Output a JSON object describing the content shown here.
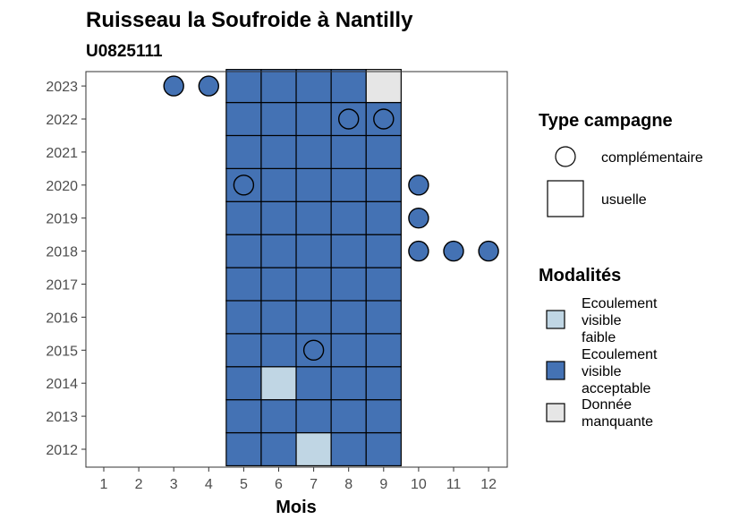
{
  "chart_data": {
    "type": "heatmap",
    "title": "Ruisseau la Soufroide à Nantilly",
    "subtitle": "U0825111",
    "xlabel": "Mois",
    "ylabel": "",
    "x_ticks": [
      "1",
      "2",
      "3",
      "4",
      "5",
      "6",
      "7",
      "8",
      "9",
      "10",
      "11",
      "12"
    ],
    "y_ticks": [
      "2012",
      "2013",
      "2014",
      "2015",
      "2016",
      "2017",
      "2018",
      "2019",
      "2020",
      "2021",
      "2022",
      "2023"
    ],
    "xlim": [
      1,
      12
    ],
    "ylim": [
      2012,
      2023
    ],
    "legend_shape": {
      "title": "Type campagne",
      "items": [
        {
          "key": "complementaire",
          "label": "complémentaire",
          "shape": "circle"
        },
        {
          "key": "usuelle",
          "label": "usuelle",
          "shape": "square"
        }
      ]
    },
    "legend_fill": {
      "title": "Modalités",
      "items": [
        {
          "key": "faible",
          "lines": [
            "Ecoulement",
            "visible",
            "faible"
          ],
          "color": "#c0d6e4"
        },
        {
          "key": "acceptable",
          "lines": [
            "Ecoulement",
            "visible",
            "acceptable"
          ],
          "color": "#4472b4"
        },
        {
          "key": "manquante",
          "lines": [
            "Donnée",
            "manquante"
          ],
          "color": "#e6e6e6"
        }
      ]
    },
    "points": [
      {
        "year": 2012,
        "month": 5,
        "type": "usuelle",
        "modalite": "acceptable"
      },
      {
        "year": 2012,
        "month": 6,
        "type": "usuelle",
        "modalite": "acceptable"
      },
      {
        "year": 2012,
        "month": 7,
        "type": "usuelle",
        "modalite": "faible"
      },
      {
        "year": 2012,
        "month": 8,
        "type": "usuelle",
        "modalite": "acceptable"
      },
      {
        "year": 2012,
        "month": 9,
        "type": "usuelle",
        "modalite": "acceptable"
      },
      {
        "year": 2013,
        "month": 5,
        "type": "usuelle",
        "modalite": "acceptable"
      },
      {
        "year": 2013,
        "month": 6,
        "type": "usuelle",
        "modalite": "acceptable"
      },
      {
        "year": 2013,
        "month": 7,
        "type": "usuelle",
        "modalite": "acceptable"
      },
      {
        "year": 2013,
        "month": 8,
        "type": "usuelle",
        "modalite": "acceptable"
      },
      {
        "year": 2013,
        "month": 9,
        "type": "usuelle",
        "modalite": "acceptable"
      },
      {
        "year": 2014,
        "month": 5,
        "type": "usuelle",
        "modalite": "acceptable"
      },
      {
        "year": 2014,
        "month": 6,
        "type": "usuelle",
        "modalite": "faible"
      },
      {
        "year": 2014,
        "month": 7,
        "type": "usuelle",
        "modalite": "acceptable"
      },
      {
        "year": 2014,
        "month": 8,
        "type": "usuelle",
        "modalite": "acceptable"
      },
      {
        "year": 2014,
        "month": 9,
        "type": "usuelle",
        "modalite": "acceptable"
      },
      {
        "year": 2015,
        "month": 5,
        "type": "usuelle",
        "modalite": "acceptable"
      },
      {
        "year": 2015,
        "month": 6,
        "type": "usuelle",
        "modalite": "acceptable"
      },
      {
        "year": 2015,
        "month": 7,
        "type": "usuelle",
        "modalite": "acceptable"
      },
      {
        "year": 2015,
        "month": 8,
        "type": "usuelle",
        "modalite": "acceptable"
      },
      {
        "year": 2015,
        "month": 9,
        "type": "usuelle",
        "modalite": "acceptable"
      },
      {
        "year": 2015,
        "month": 7,
        "type": "complementaire",
        "modalite": "acceptable"
      },
      {
        "year": 2016,
        "month": 5,
        "type": "usuelle",
        "modalite": "acceptable"
      },
      {
        "year": 2016,
        "month": 6,
        "type": "usuelle",
        "modalite": "acceptable"
      },
      {
        "year": 2016,
        "month": 7,
        "type": "usuelle",
        "modalite": "acceptable"
      },
      {
        "year": 2016,
        "month": 8,
        "type": "usuelle",
        "modalite": "acceptable"
      },
      {
        "year": 2016,
        "month": 9,
        "type": "usuelle",
        "modalite": "acceptable"
      },
      {
        "year": 2017,
        "month": 5,
        "type": "usuelle",
        "modalite": "acceptable"
      },
      {
        "year": 2017,
        "month": 6,
        "type": "usuelle",
        "modalite": "acceptable"
      },
      {
        "year": 2017,
        "month": 7,
        "type": "usuelle",
        "modalite": "acceptable"
      },
      {
        "year": 2017,
        "month": 8,
        "type": "usuelle",
        "modalite": "acceptable"
      },
      {
        "year": 2017,
        "month": 9,
        "type": "usuelle",
        "modalite": "acceptable"
      },
      {
        "year": 2018,
        "month": 5,
        "type": "usuelle",
        "modalite": "acceptable"
      },
      {
        "year": 2018,
        "month": 6,
        "type": "usuelle",
        "modalite": "acceptable"
      },
      {
        "year": 2018,
        "month": 7,
        "type": "usuelle",
        "modalite": "acceptable"
      },
      {
        "year": 2018,
        "month": 8,
        "type": "usuelle",
        "modalite": "acceptable"
      },
      {
        "year": 2018,
        "month": 9,
        "type": "usuelle",
        "modalite": "acceptable"
      },
      {
        "year": 2018,
        "month": 10,
        "type": "complementaire",
        "modalite": "acceptable"
      },
      {
        "year": 2018,
        "month": 11,
        "type": "complementaire",
        "modalite": "acceptable"
      },
      {
        "year": 2018,
        "month": 12,
        "type": "complementaire",
        "modalite": "acceptable"
      },
      {
        "year": 2019,
        "month": 5,
        "type": "usuelle",
        "modalite": "acceptable"
      },
      {
        "year": 2019,
        "month": 6,
        "type": "usuelle",
        "modalite": "acceptable"
      },
      {
        "year": 2019,
        "month": 7,
        "type": "usuelle",
        "modalite": "acceptable"
      },
      {
        "year": 2019,
        "month": 8,
        "type": "usuelle",
        "modalite": "acceptable"
      },
      {
        "year": 2019,
        "month": 9,
        "type": "usuelle",
        "modalite": "acceptable"
      },
      {
        "year": 2019,
        "month": 10,
        "type": "complementaire",
        "modalite": "acceptable"
      },
      {
        "year": 2020,
        "month": 5,
        "type": "usuelle",
        "modalite": "acceptable"
      },
      {
        "year": 2020,
        "month": 6,
        "type": "usuelle",
        "modalite": "acceptable"
      },
      {
        "year": 2020,
        "month": 7,
        "type": "usuelle",
        "modalite": "acceptable"
      },
      {
        "year": 2020,
        "month": 8,
        "type": "usuelle",
        "modalite": "acceptable"
      },
      {
        "year": 2020,
        "month": 9,
        "type": "usuelle",
        "modalite": "acceptable"
      },
      {
        "year": 2020,
        "month": 5,
        "type": "complementaire",
        "modalite": "acceptable"
      },
      {
        "year": 2020,
        "month": 10,
        "type": "complementaire",
        "modalite": "acceptable"
      },
      {
        "year": 2021,
        "month": 5,
        "type": "usuelle",
        "modalite": "acceptable"
      },
      {
        "year": 2021,
        "month": 6,
        "type": "usuelle",
        "modalite": "acceptable"
      },
      {
        "year": 2021,
        "month": 7,
        "type": "usuelle",
        "modalite": "acceptable"
      },
      {
        "year": 2021,
        "month": 8,
        "type": "usuelle",
        "modalite": "acceptable"
      },
      {
        "year": 2021,
        "month": 9,
        "type": "usuelle",
        "modalite": "acceptable"
      },
      {
        "year": 2022,
        "month": 5,
        "type": "usuelle",
        "modalite": "acceptable"
      },
      {
        "year": 2022,
        "month": 6,
        "type": "usuelle",
        "modalite": "acceptable"
      },
      {
        "year": 2022,
        "month": 7,
        "type": "usuelle",
        "modalite": "acceptable"
      },
      {
        "year": 2022,
        "month": 8,
        "type": "usuelle",
        "modalite": "acceptable"
      },
      {
        "year": 2022,
        "month": 9,
        "type": "usuelle",
        "modalite": "acceptable"
      },
      {
        "year": 2022,
        "month": 8,
        "type": "complementaire",
        "modalite": "acceptable"
      },
      {
        "year": 2022,
        "month": 9,
        "type": "complementaire",
        "modalite": "acceptable"
      },
      {
        "year": 2023,
        "month": 5,
        "type": "usuelle",
        "modalite": "acceptable"
      },
      {
        "year": 2023,
        "month": 6,
        "type": "usuelle",
        "modalite": "acceptable"
      },
      {
        "year": 2023,
        "month": 7,
        "type": "usuelle",
        "modalite": "acceptable"
      },
      {
        "year": 2023,
        "month": 8,
        "type": "usuelle",
        "modalite": "acceptable"
      },
      {
        "year": 2023,
        "month": 9,
        "type": "usuelle",
        "modalite": "manquante"
      },
      {
        "year": 2023,
        "month": 3,
        "type": "complementaire",
        "modalite": "acceptable"
      },
      {
        "year": 2023,
        "month": 4,
        "type": "complementaire",
        "modalite": "acceptable"
      }
    ]
  }
}
